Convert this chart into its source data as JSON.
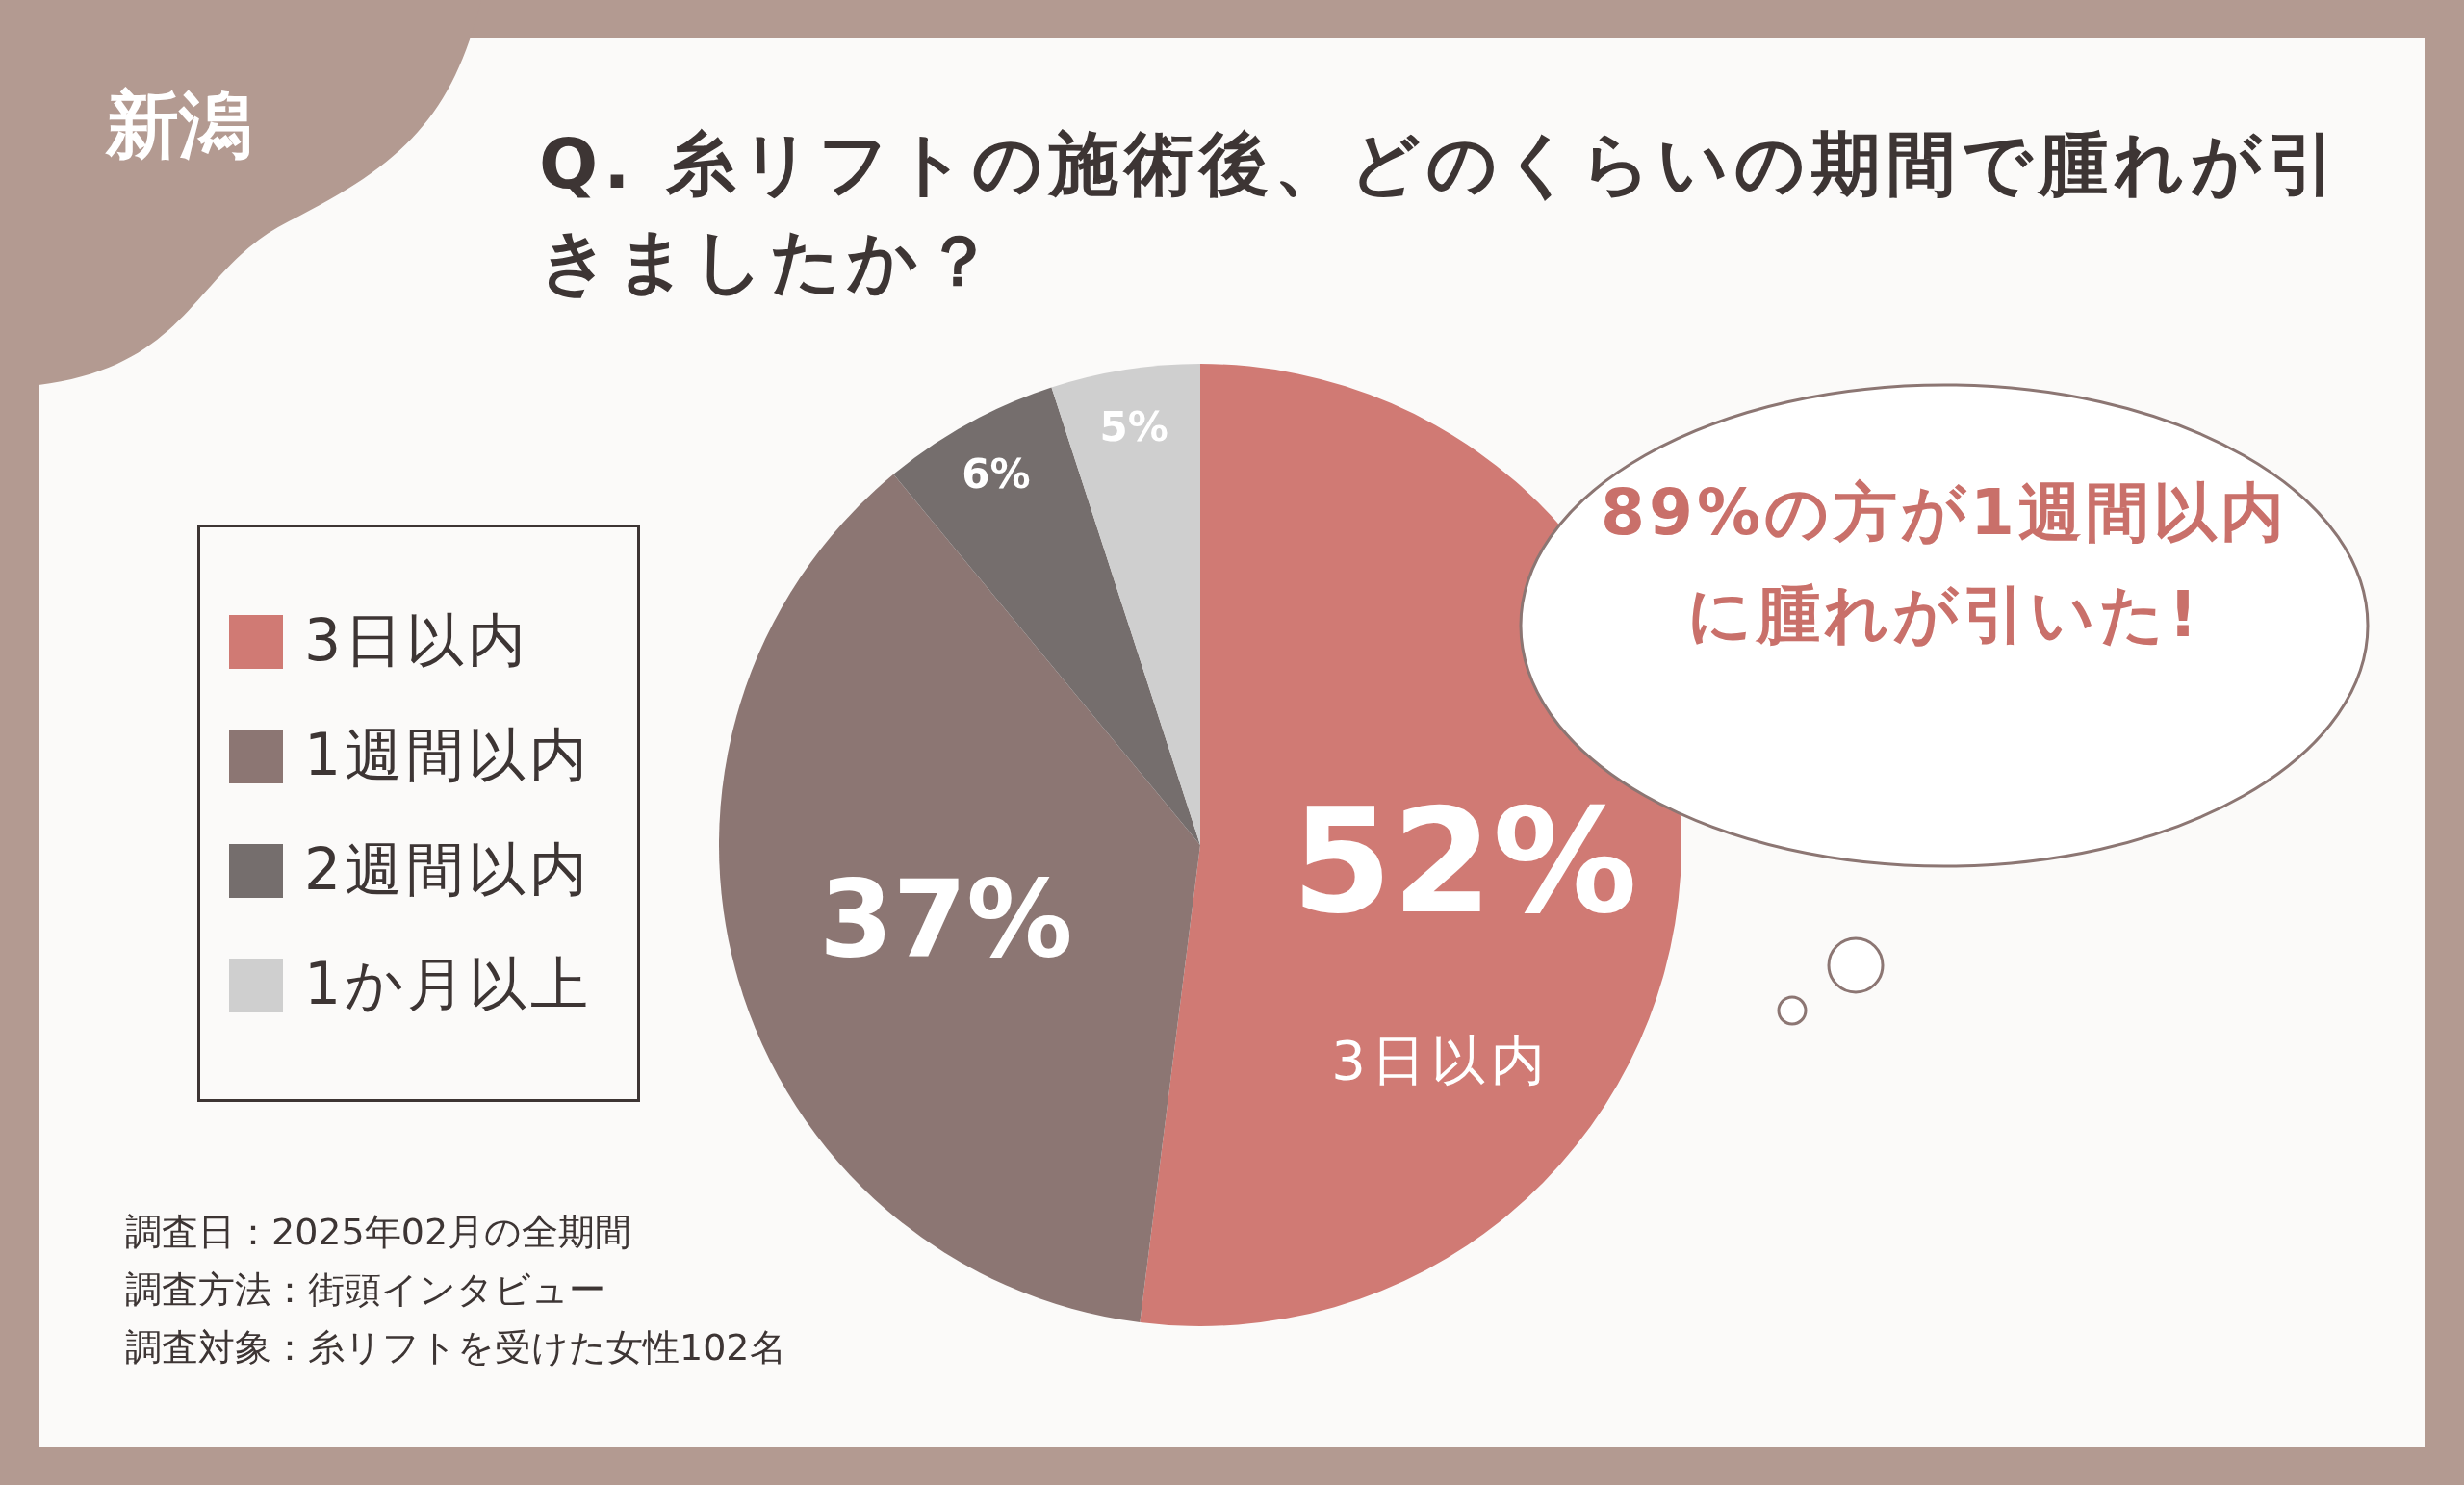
{
  "chart_data": {
    "type": "pie",
    "title": "Q. 糸リフトの施術後、どのくらいの期間で腫れが引きましたか？",
    "categories": [
      "3日以内",
      "1週間以内",
      "2週間以内",
      "1か月以上"
    ],
    "values": [
      52,
      37,
      6,
      5
    ],
    "colors": [
      "#d07a74",
      "#8c7673",
      "#756e6d",
      "#cfcfcf"
    ],
    "value_labels": [
      "52%",
      "37%",
      "6%",
      "5%"
    ],
    "legend": "left",
    "annotations": [
      "新潟",
      "3日以内",
      "89%の方が1週間以内に腫れが引いた!",
      "調査日：2025年02月の全期間",
      "調査方法：街頭インタビュー",
      "調査対象：糸リフトを受けた女性102名"
    ]
  }
}
